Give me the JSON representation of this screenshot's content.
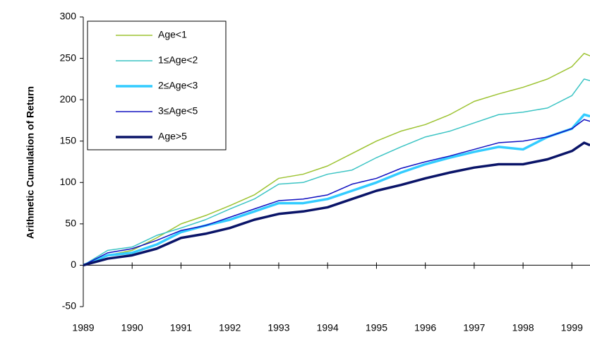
{
  "chart_data": {
    "type": "line",
    "y_label": "Arithmetic Cumulation of Return",
    "x": [
      1989,
      1989.5,
      1990,
      1990.5,
      1991,
      1991.5,
      1992,
      1992.5,
      1993,
      1993.5,
      1994,
      1994.5,
      1995,
      1995.5,
      1996,
      1996.5,
      1997,
      1997.5,
      1998,
      1998.5,
      1999,
      1999.25,
      1999.37
    ],
    "series": [
      {
        "name": "Age<1",
        "color": "#9dc332",
        "line_width": 1.5,
        "values": [
          0,
          12,
          18,
          33,
          50,
          60,
          72,
          85,
          105,
          110,
          120,
          135,
          150,
          162,
          170,
          182,
          198,
          207,
          215,
          225,
          240,
          256,
          253
        ]
      },
      {
        "name": "1≤Age<2",
        "color": "#3cc4c4",
        "line_width": 1.5,
        "values": [
          0,
          18,
          22,
          36,
          45,
          55,
          68,
          80,
          98,
          100,
          110,
          115,
          130,
          143,
          155,
          162,
          172,
          182,
          185,
          190,
          205,
          225,
          223
        ]
      },
      {
        "name": "2≤Age<3",
        "color": "#33ccff",
        "line_width": 3.5,
        "values": [
          0,
          12,
          15,
          25,
          40,
          48,
          55,
          65,
          75,
          75,
          80,
          90,
          100,
          112,
          122,
          130,
          137,
          143,
          140,
          155,
          165,
          182,
          180
        ]
      },
      {
        "name": "3≤Age<5",
        "color": "#1010c0",
        "line_width": 1.5,
        "values": [
          0,
          15,
          20,
          30,
          42,
          48,
          58,
          68,
          78,
          80,
          85,
          98,
          105,
          117,
          125,
          132,
          140,
          148,
          150,
          155,
          165,
          176,
          174
        ]
      },
      {
        "name": "Age>5",
        "color": "#0a1468",
        "line_width": 3.5,
        "values": [
          0,
          8,
          12,
          20,
          33,
          38,
          45,
          55,
          62,
          65,
          70,
          80,
          90,
          97,
          105,
          112,
          118,
          122,
          122,
          128,
          138,
          148,
          145
        ]
      }
    ],
    "xlim": [
      1989,
      1999.37
    ],
    "xticks": [
      1989,
      1990,
      1991,
      1992,
      1993,
      1994,
      1995,
      1996,
      1997,
      1998,
      1999
    ],
    "ylim": [
      -50,
      300
    ],
    "yticks": [
      -50,
      0,
      50,
      100,
      150,
      200,
      250,
      300
    ],
    "grid": false,
    "legend": "top-left"
  }
}
